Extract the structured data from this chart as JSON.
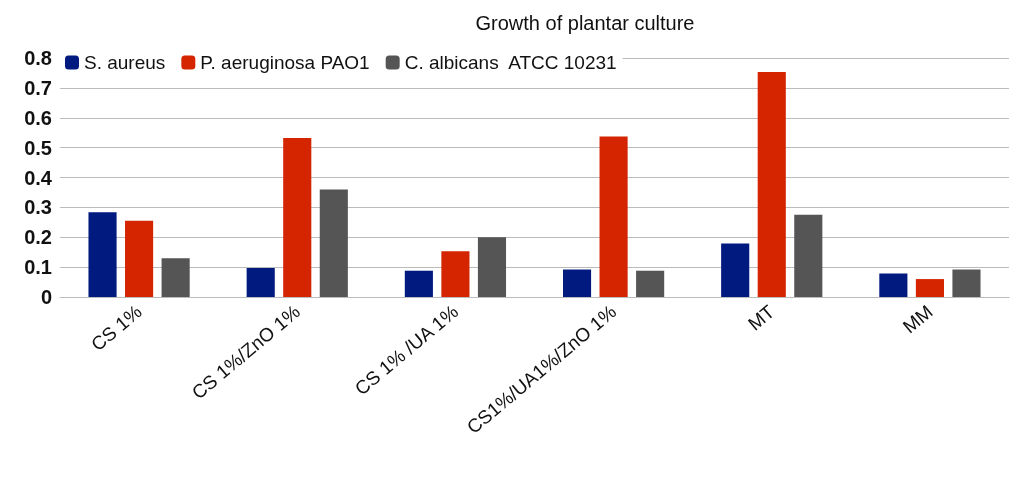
{
  "chart_data": {
    "type": "bar",
    "title": "Growth of plantar culture",
    "categories": [
      "CS 1%",
      "CS 1%/ZnO 1%",
      "CS 1% /UA 1%",
      "CS1%/UA1%/ZnO 1%",
      "MT",
      "MM"
    ],
    "series": [
      {
        "name": "S. aureus",
        "color": "#001a80",
        "values": [
          0.284,
          0.097,
          0.088,
          0.092,
          0.179,
          0.079
        ]
      },
      {
        "name": "P. aeruginosa PAO1",
        "color": "#d42400",
        "values": [
          0.255,
          0.532,
          0.153,
          0.537,
          0.753,
          0.06
        ]
      },
      {
        "name": "C. albicans  ATCC 10231",
        "color": "#555555",
        "values": [
          0.13,
          0.36,
          0.2,
          0.088,
          0.275,
          0.092
        ]
      }
    ],
    "ylim": [
      0,
      0.8
    ],
    "yticks": [
      0,
      0.1,
      0.2,
      0.3,
      0.4,
      0.5,
      0.6,
      0.7,
      0.8
    ],
    "grid": "y",
    "legend": "top left"
  }
}
